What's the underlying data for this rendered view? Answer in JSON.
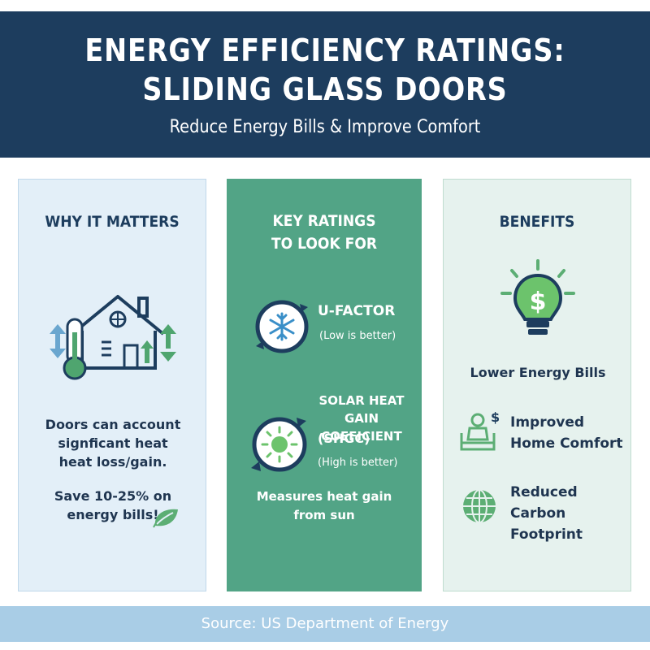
{
  "header": {
    "title_line1": "ENERGY EFFICIENCY RATINGS:",
    "title_line2": "SLIDING GLASS DOORS",
    "subtitle": "Reduce Energy Bills & Improve Comfort"
  },
  "why": {
    "title": "WHY IT MATTERS",
    "text1_line1": "Doors can account",
    "text1_line2": "signficant heat",
    "text1_line3": "heat loss/gain.",
    "text2_line1": "Save 10-25% on",
    "text2_line2": "energy bills!"
  },
  "ratings": {
    "title_line1": "KEY RATINGS",
    "title_line2": "TO LOOK FOR",
    "ufactor_label": "U-FACTOR",
    "ufactor_note": "(Low is better)",
    "shgc_line1": "SOLAR HEAT",
    "shgc_line2": "GAIN COEFICIENT",
    "shgc_line3": "(SHGC)",
    "shgc_note": "(High is better)",
    "measure_line1": "Measures heat gain",
    "measure_line2": "from sun"
  },
  "benefits": {
    "title": "BENEFITS",
    "item1": "Lower Energy Bills",
    "item2_line1": "Improved",
    "item2_line2": "Home Comfort",
    "item3_line1": "Reduced",
    "item3_line2": "Carbon Footprint"
  },
  "footer": {
    "source": "Source: US Department of Energy"
  },
  "colors": {
    "navy": "#1d3d5e",
    "green": "#52a486",
    "light_blue": "#e3eff8",
    "light_green": "#e6f2ee",
    "footer_blue": "#a9cde6"
  }
}
